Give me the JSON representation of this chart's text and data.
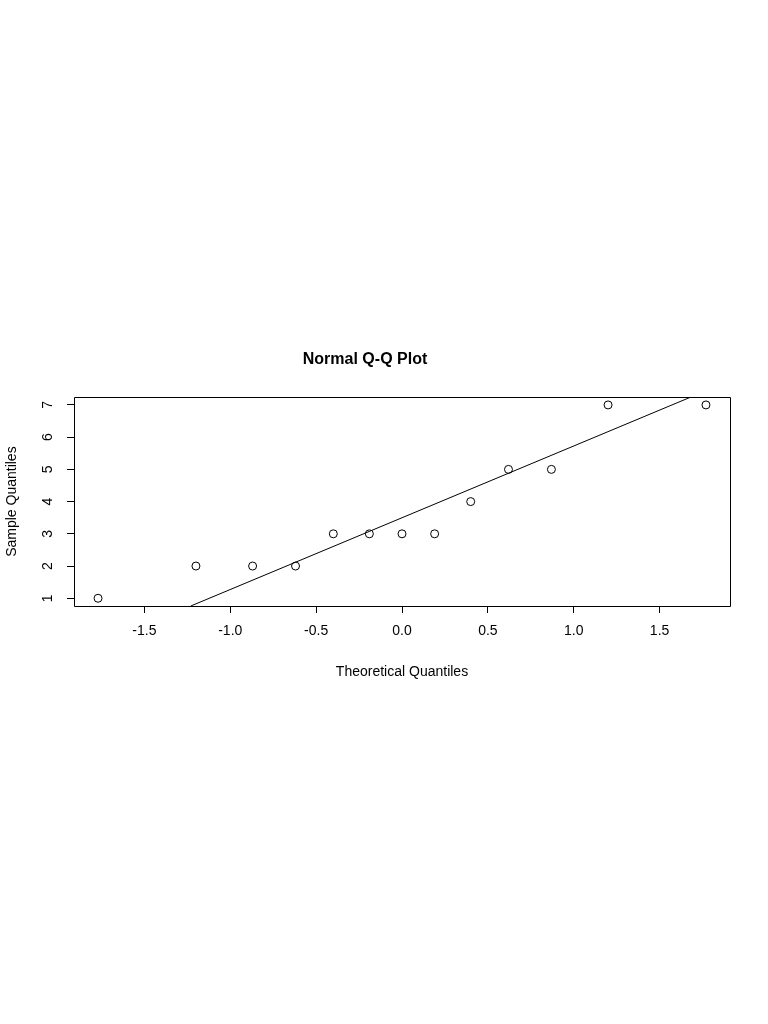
{
  "chart_data": {
    "type": "scatter",
    "title": "Normal Q-Q Plot",
    "xlabel": "Theoretical Quantiles",
    "ylabel": "Sample Quantiles",
    "xlim": [
      -1.91,
      1.91
    ],
    "ylim": [
      0.76,
      7.24
    ],
    "xticks": [
      -1.5,
      {
        "value": -1,
        "label": "-1.0"
      },
      -0.5,
      {
        "value": 0,
        "label": "0.0"
      },
      0.5,
      {
        "value": 1,
        "label": "1.0"
      },
      1.5
    ],
    "yticks": [
      1,
      2,
      3,
      4,
      5,
      6,
      7
    ],
    "grid": false,
    "legend": false,
    "marker": "circle",
    "series": [
      {
        "color": "#000000",
        "x": [
          -1.77,
          -1.2,
          -0.87,
          -0.62,
          -0.4,
          -0.19,
          0,
          0.19,
          0.4,
          0.62,
          0.87,
          1.2,
          1.77
        ],
        "values": [
          1,
          2,
          2,
          2,
          3,
          3,
          3,
          3,
          4,
          5,
          5,
          7,
          7
        ]
      },
      {
        "type": "line",
        "color": "#000000",
        "marker": "none",
        "x": [
          -1.23,
          1.68
        ],
        "values": [
          0.76,
          7.24
        ]
      }
    ]
  }
}
